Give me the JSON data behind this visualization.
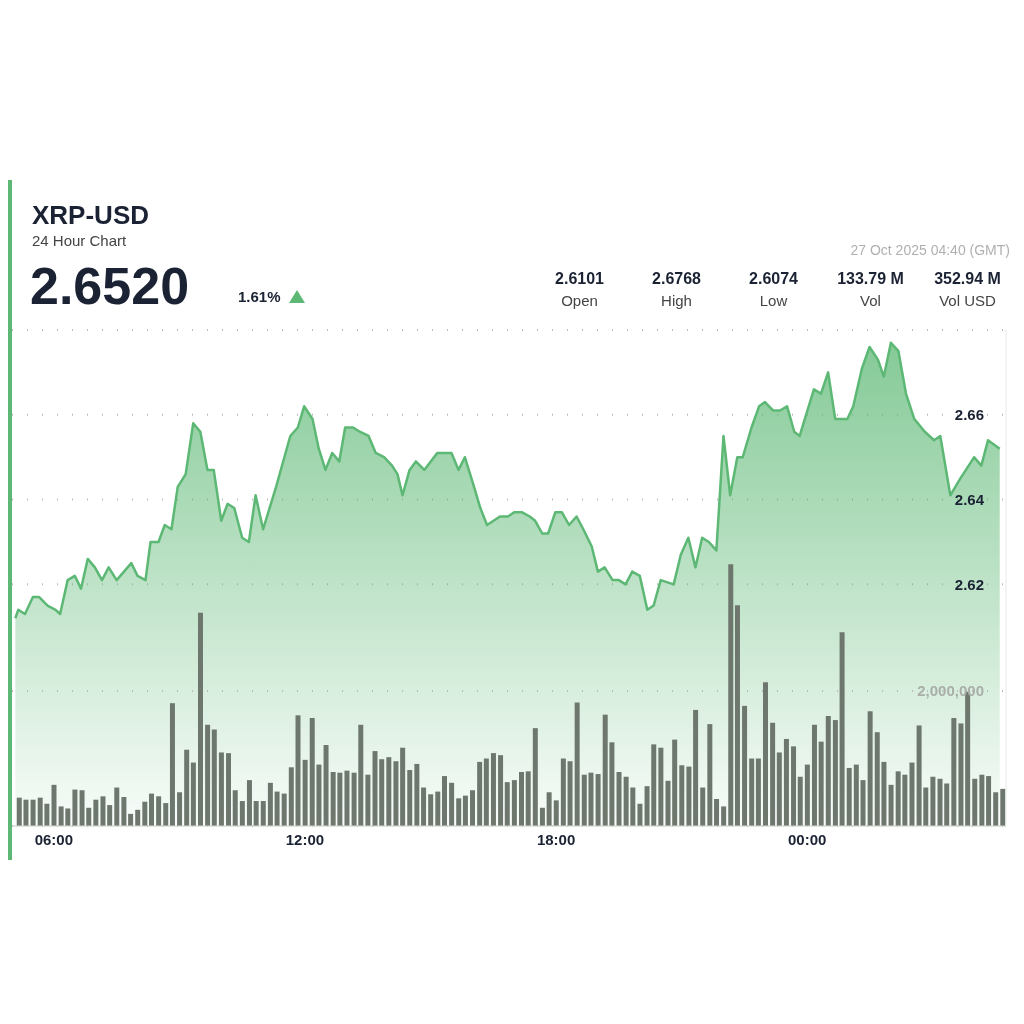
{
  "chart_data": {
    "type": "area",
    "title": "XRP-USD",
    "subtitle": "24 Hour Chart",
    "annotations": [
      "2.6520",
      "1.61%",
      "2.6101",
      "Open",
      "2.6768",
      "High",
      "2.6074",
      "Low",
      "133.79 M",
      "Vol",
      "352.94 M",
      "Vol USD",
      "27 Oct 2025 04:40 (GMT)"
    ],
    "xlim": [
      5,
      28.75
    ],
    "xticks": [
      {
        "value": 6,
        "label": "06:00"
      },
      {
        "value": 12,
        "label": "12:00"
      },
      {
        "value": 18,
        "label": "18:00"
      },
      {
        "value": 24,
        "label": "00:00"
      }
    ],
    "ylim": [
      2.563,
      2.68
    ],
    "yticks": [
      2.62,
      2.64,
      2.66
    ],
    "y2lim": [
      0,
      7350000
    ],
    "y2ticks": [
      {
        "value": 2000000,
        "label": "2,000,000"
      }
    ],
    "grid": "y",
    "series": [
      {
        "color": "#5cb874",
        "x": [
          5.08,
          5.15,
          5.31,
          5.5,
          5.65,
          5.85,
          6.04,
          6.15,
          6.33,
          6.5,
          6.65,
          6.81,
          6.98,
          7.15,
          7.31,
          7.5,
          7.85,
          8,
          8.19,
          8.31,
          8.5,
          8.65,
          8.81,
          8.96,
          9.15,
          9.33,
          9.5,
          9.67,
          9.82,
          10,
          10.15,
          10.31,
          10.5,
          10.66,
          10.82,
          11,
          11.31,
          11.65,
          11.83,
          11.98,
          12.18,
          12.33,
          12.49,
          12.65,
          12.82,
          12.96,
          13.15,
          13.31,
          13.52,
          13.69,
          13.89,
          14.08,
          14.21,
          14.33,
          14.5,
          14.65,
          14.85,
          15.16,
          15.5,
          15.67,
          15.82,
          16.04,
          16.19,
          16.35,
          16.66,
          16.85,
          17,
          17.19,
          17.37,
          17.5,
          17.67,
          17.81,
          17.98,
          18.14,
          18.31,
          18.49,
          18.65,
          18.85,
          19,
          19.16,
          19.35,
          19.5,
          19.66,
          19.82,
          20,
          20.18,
          20.33,
          20.5,
          20.81,
          20.98,
          21.16,
          21.33,
          21.49,
          21.65,
          21.83,
          22,
          22.16,
          22.33,
          22.46,
          22.67,
          22.85,
          22.99,
          23.19,
          23.35,
          23.52,
          23.69,
          23.82,
          24.16,
          24.33,
          24.5,
          24.67,
          24.96,
          25.1,
          25.31,
          25.49,
          25.69,
          25.83,
          26,
          26.18,
          26.36,
          26.56,
          26.81,
          27.03,
          27.18,
          27.42,
          27.66,
          27.99,
          28.16,
          28.32,
          28.6
        ],
        "values": [
          2.612,
          2.614,
          2.613,
          2.617,
          2.617,
          2.615,
          2.614,
          2.613,
          2.621,
          2.622,
          2.619,
          2.626,
          2.624,
          2.621,
          2.624,
          2.621,
          2.625,
          2.622,
          2.621,
          2.63,
          2.63,
          2.634,
          2.633,
          2.643,
          2.646,
          2.658,
          2.656,
          2.647,
          2.647,
          2.635,
          2.639,
          2.638,
          2.631,
          2.63,
          2.641,
          2.633,
          2.643,
          2.655,
          2.657,
          2.662,
          2.659,
          2.652,
          2.647,
          2.651,
          2.649,
          2.657,
          2.657,
          2.656,
          2.655,
          2.651,
          2.65,
          2.648,
          2.646,
          2.641,
          2.647,
          2.649,
          2.647,
          2.651,
          2.651,
          2.647,
          2.65,
          2.643,
          2.638,
          2.634,
          2.636,
          2.636,
          2.637,
          2.637,
          2.636,
          2.635,
          2.632,
          2.632,
          2.637,
          2.637,
          2.634,
          2.636,
          2.633,
          2.629,
          2.623,
          2.624,
          2.621,
          2.621,
          2.62,
          2.623,
          2.622,
          2.614,
          2.615,
          2.621,
          2.62,
          2.627,
          2.631,
          2.624,
          2.631,
          2.63,
          2.628,
          2.655,
          2.641,
          2.65,
          2.65,
          2.657,
          2.662,
          2.663,
          2.661,
          2.661,
          2.662,
          2.656,
          2.655,
          2.666,
          2.665,
          2.67,
          2.659,
          2.659,
          2.662,
          2.671,
          2.676,
          2.673,
          2.669,
          2.677,
          2.675,
          2.665,
          2.659,
          2.656,
          2.654,
          2.655,
          2.641,
          2.645,
          2.65,
          2.648,
          2.654,
          2.652
        ]
      },
      {
        "type": "bar",
        "axis": "y2",
        "color": "#6e776d",
        "x": [
          5.17,
          5.33,
          5.5,
          5.67,
          5.83,
          6,
          6.17,
          6.33,
          6.5,
          6.67,
          6.83,
          7,
          7.17,
          7.33,
          7.5,
          7.67,
          7.83,
          8,
          8.17,
          8.33,
          8.5,
          8.67,
          8.83,
          9,
          9.17,
          9.33,
          9.5,
          9.67,
          9.83,
          10,
          10.17,
          10.33,
          10.5,
          10.67,
          10.83,
          11,
          11.17,
          11.33,
          11.5,
          11.67,
          11.83,
          12,
          12.17,
          12.33,
          12.5,
          12.67,
          12.83,
          13,
          13.17,
          13.33,
          13.5,
          13.67,
          13.83,
          14,
          14.17,
          14.33,
          14.5,
          14.67,
          14.83,
          15,
          15.17,
          15.33,
          15.5,
          15.67,
          15.83,
          16,
          16.17,
          16.33,
          16.5,
          16.67,
          16.83,
          17,
          17.17,
          17.33,
          17.5,
          17.67,
          17.83,
          18,
          18.17,
          18.33,
          18.5,
          18.67,
          18.83,
          19,
          19.17,
          19.33,
          19.5,
          19.67,
          19.83,
          20,
          20.17,
          20.33,
          20.5,
          20.67,
          20.83,
          21,
          21.17,
          21.33,
          21.5,
          21.67,
          21.83,
          22,
          22.17,
          22.33,
          22.5,
          22.67,
          22.83,
          23,
          23.17,
          23.33,
          23.5,
          23.67,
          23.83,
          24,
          24.17,
          24.33,
          24.5,
          24.67,
          24.83,
          25,
          25.17,
          25.33,
          25.5,
          25.67,
          25.83,
          26,
          26.17,
          26.33,
          26.5,
          26.67,
          26.83,
          27,
          27.17,
          27.33,
          27.5,
          27.67,
          27.83,
          28,
          28.17,
          28.33,
          28.5,
          28.67
        ],
        "values": [
          420000,
          390000,
          390000,
          420000,
          330000,
          610000,
          290000,
          260000,
          540000,
          530000,
          270000,
          390000,
          440000,
          310000,
          570000,
          430000,
          180000,
          240000,
          360000,
          480000,
          440000,
          340000,
          1820000,
          500000,
          1130000,
          940000,
          3160000,
          1500000,
          1430000,
          1090000,
          1080000,
          530000,
          370000,
          680000,
          370000,
          370000,
          640000,
          510000,
          480000,
          870000,
          1640000,
          980000,
          1600000,
          910000,
          1200000,
          800000,
          790000,
          820000,
          790000,
          1500000,
          760000,
          1110000,
          990000,
          1020000,
          960000,
          1160000,
          830000,
          920000,
          570000,
          470000,
          510000,
          740000,
          640000,
          410000,
          450000,
          530000,
          950000,
          1000000,
          1080000,
          1050000,
          650000,
          680000,
          800000,
          810000,
          1450000,
          270000,
          500000,
          380000,
          1000000,
          960000,
          1830000,
          760000,
          790000,
          770000,
          1650000,
          1240000,
          800000,
          730000,
          570000,
          330000,
          590000,
          1210000,
          1160000,
          670000,
          1280000,
          900000,
          880000,
          1720000,
          570000,
          1510000,
          400000,
          290000,
          3880000,
          3270000,
          1780000,
          1000000,
          1000000,
          2130000,
          1530000,
          1090000,
          1290000,
          1180000,
          730000,
          910000,
          1500000,
          1250000,
          1630000,
          1570000,
          2870000,
          860000,
          910000,
          680000,
          1700000,
          1390000,
          950000,
          610000,
          810000,
          760000,
          940000,
          1490000,
          570000,
          730000,
          700000,
          630000,
          1600000,
          1520000,
          1990000,
          700000,
          760000,
          740000,
          500000,
          550000
        ]
      }
    ]
  }
}
